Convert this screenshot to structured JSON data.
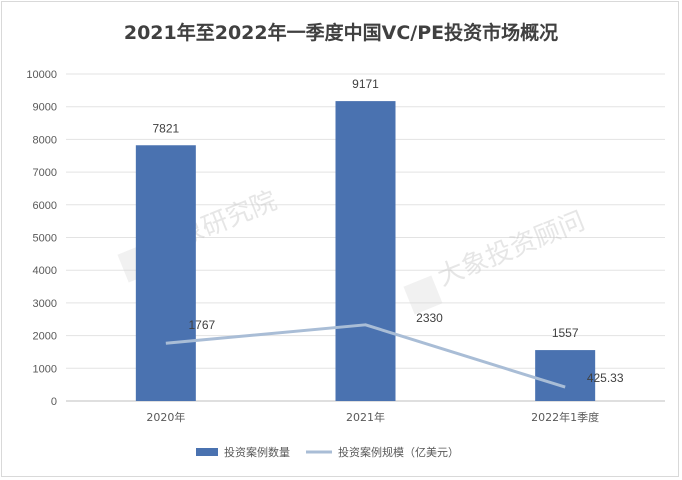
{
  "chart_data": {
    "type": "bar",
    "title": "2021年至2022年一季度中国VC/PE投资市场概况",
    "categories": [
      "2020年",
      "2021年",
      "2022年1季度"
    ],
    "ylim": [
      0,
      10000
    ],
    "yticks": [
      0,
      1000,
      2000,
      3000,
      4000,
      5000,
      6000,
      7000,
      8000,
      9000,
      10000
    ],
    "grid": true,
    "legend_position": "bottom",
    "series": [
      {
        "name": "投资案例数量",
        "type": "bar",
        "values": [
          7821,
          9171,
          1557
        ],
        "labels": [
          "7821",
          "9171",
          "1557"
        ],
        "color": "#4a72b0"
      },
      {
        "name": "投资案例规模（亿美元）",
        "type": "line",
        "values": [
          1767,
          2330,
          425.33
        ],
        "labels": [
          "1767",
          "2330",
          "425.33"
        ],
        "color": "#a9bdd6"
      }
    ]
  },
  "watermarks": [
    "大象研究院",
    "大象投资顾问"
  ]
}
